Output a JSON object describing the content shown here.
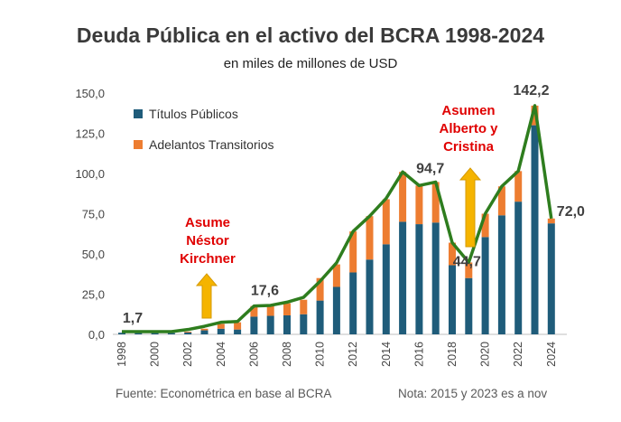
{
  "chart_data": {
    "type": "bar",
    "title": "Deuda Pública en el activo del BCRA 1998-2024",
    "subtitle": "en miles de millones de USD",
    "stacked": true,
    "categories": [
      "1998",
      "1999",
      "2000",
      "2001",
      "2002",
      "2003",
      "2004",
      "2005",
      "2006",
      "2007",
      "2008",
      "2009",
      "2010",
      "2011",
      "2012",
      "2013",
      "2014",
      "2015",
      "2016",
      "2017",
      "2018",
      "2019",
      "2020",
      "2021",
      "2022",
      "2023",
      "2024"
    ],
    "x_tick_labels": [
      "1998",
      "2000",
      "2002",
      "2004",
      "2006",
      "2008",
      "2010",
      "2012",
      "2014",
      "2016",
      "2018",
      "2020",
      "2022",
      "2024"
    ],
    "series": [
      {
        "name": "Títulos Públicos",
        "color": "#1f5c7a",
        "values": [
          1.0,
          0.8,
          0.8,
          0.8,
          1.2,
          2.5,
          3.5,
          3.0,
          11.0,
          11.5,
          11.8,
          12.5,
          21.0,
          29.5,
          38.5,
          46.5,
          56.0,
          70.0,
          68.5,
          69.5,
          43.0,
          35.0,
          60.5,
          74.0,
          82.5,
          130.0,
          69.0
        ]
      },
      {
        "name": "Adelantos Transitorios",
        "color": "#ed7d31",
        "values": [
          0.0,
          0.0,
          0.0,
          0.0,
          0.5,
          1.0,
          3.0,
          4.5,
          6.6,
          6.5,
          7.5,
          9.0,
          14.0,
          14.0,
          25.5,
          27.0,
          28.0,
          31.0,
          24.0,
          25.2,
          14.0,
          9.7,
          14.5,
          18.0,
          19.0,
          12.2,
          3.0
        ]
      }
    ],
    "total_line": {
      "color": "#2e7d1e",
      "values": [
        1.7,
        1.7,
        1.7,
        1.7,
        3.0,
        5.0,
        7.5,
        8.0,
        17.6,
        18.0,
        20.0,
        23.0,
        33.0,
        44.5,
        64.0,
        73.5,
        84.5,
        101.0,
        92.5,
        94.7,
        57.0,
        44.7,
        75.0,
        92.0,
        101.5,
        142.2,
        72.0
      ]
    },
    "ylim": [
      0,
      150
    ],
    "y_ticks": [
      "0,0",
      "25,0",
      "50,0",
      "75,0",
      "100,0",
      "125,0",
      "150,0"
    ],
    "y_tick_values": [
      0,
      25,
      50,
      75,
      100,
      125,
      150
    ],
    "data_labels": [
      {
        "text": "1,7",
        "index": 0
      },
      {
        "text": "17,6",
        "index": 8
      },
      {
        "text": "94,7",
        "index": 19
      },
      {
        "text": "44,7",
        "index": 21
      },
      {
        "text": "142,2",
        "index": 25
      },
      {
        "text": "72,0",
        "index": 26
      }
    ],
    "annotations": [
      {
        "lines": [
          "Asume",
          "Néstor",
          "Kirchner"
        ],
        "color": "#e00000",
        "arrow_year_index": 5
      },
      {
        "lines": [
          "Asumen",
          "Alberto y",
          "Cristina"
        ],
        "color": "#e00000",
        "arrow_year_index": 21
      }
    ],
    "legend_position": "top-left",
    "grid": false
  },
  "footer": {
    "source": "Fuente: Econométrica en base al BCRA",
    "note": "Nota: 2015 y 2023 es a nov"
  }
}
